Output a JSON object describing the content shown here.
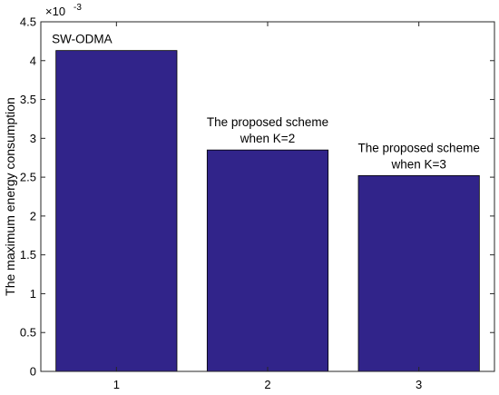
{
  "chart_data": {
    "type": "bar",
    "categories": [
      "1",
      "2",
      "3"
    ],
    "values": [
      0.00413,
      0.00285,
      0.00252
    ],
    "ylabel": "The maximum energy consumption",
    "ylim": [
      0,
      0.0045
    ],
    "y_exponent_label": "×10",
    "y_exponent_power": "-3",
    "y_ticks": [
      0,
      0.5,
      1,
      1.5,
      2,
      2.5,
      3,
      3.5,
      4,
      4.5
    ],
    "y_tick_labels": [
      "0",
      "0.5",
      "1",
      "1.5",
      "2",
      "2.5",
      "3",
      "3.5",
      "4",
      "4.5"
    ],
    "annotations": [
      [
        "SW-ODMA"
      ],
      [
        "The proposed scheme",
        "when K=2"
      ],
      [
        "The proposed scheme",
        "when K=3"
      ]
    ],
    "grid": false,
    "bar_color": "#31248a",
    "bar_edge_color": "#000000"
  }
}
